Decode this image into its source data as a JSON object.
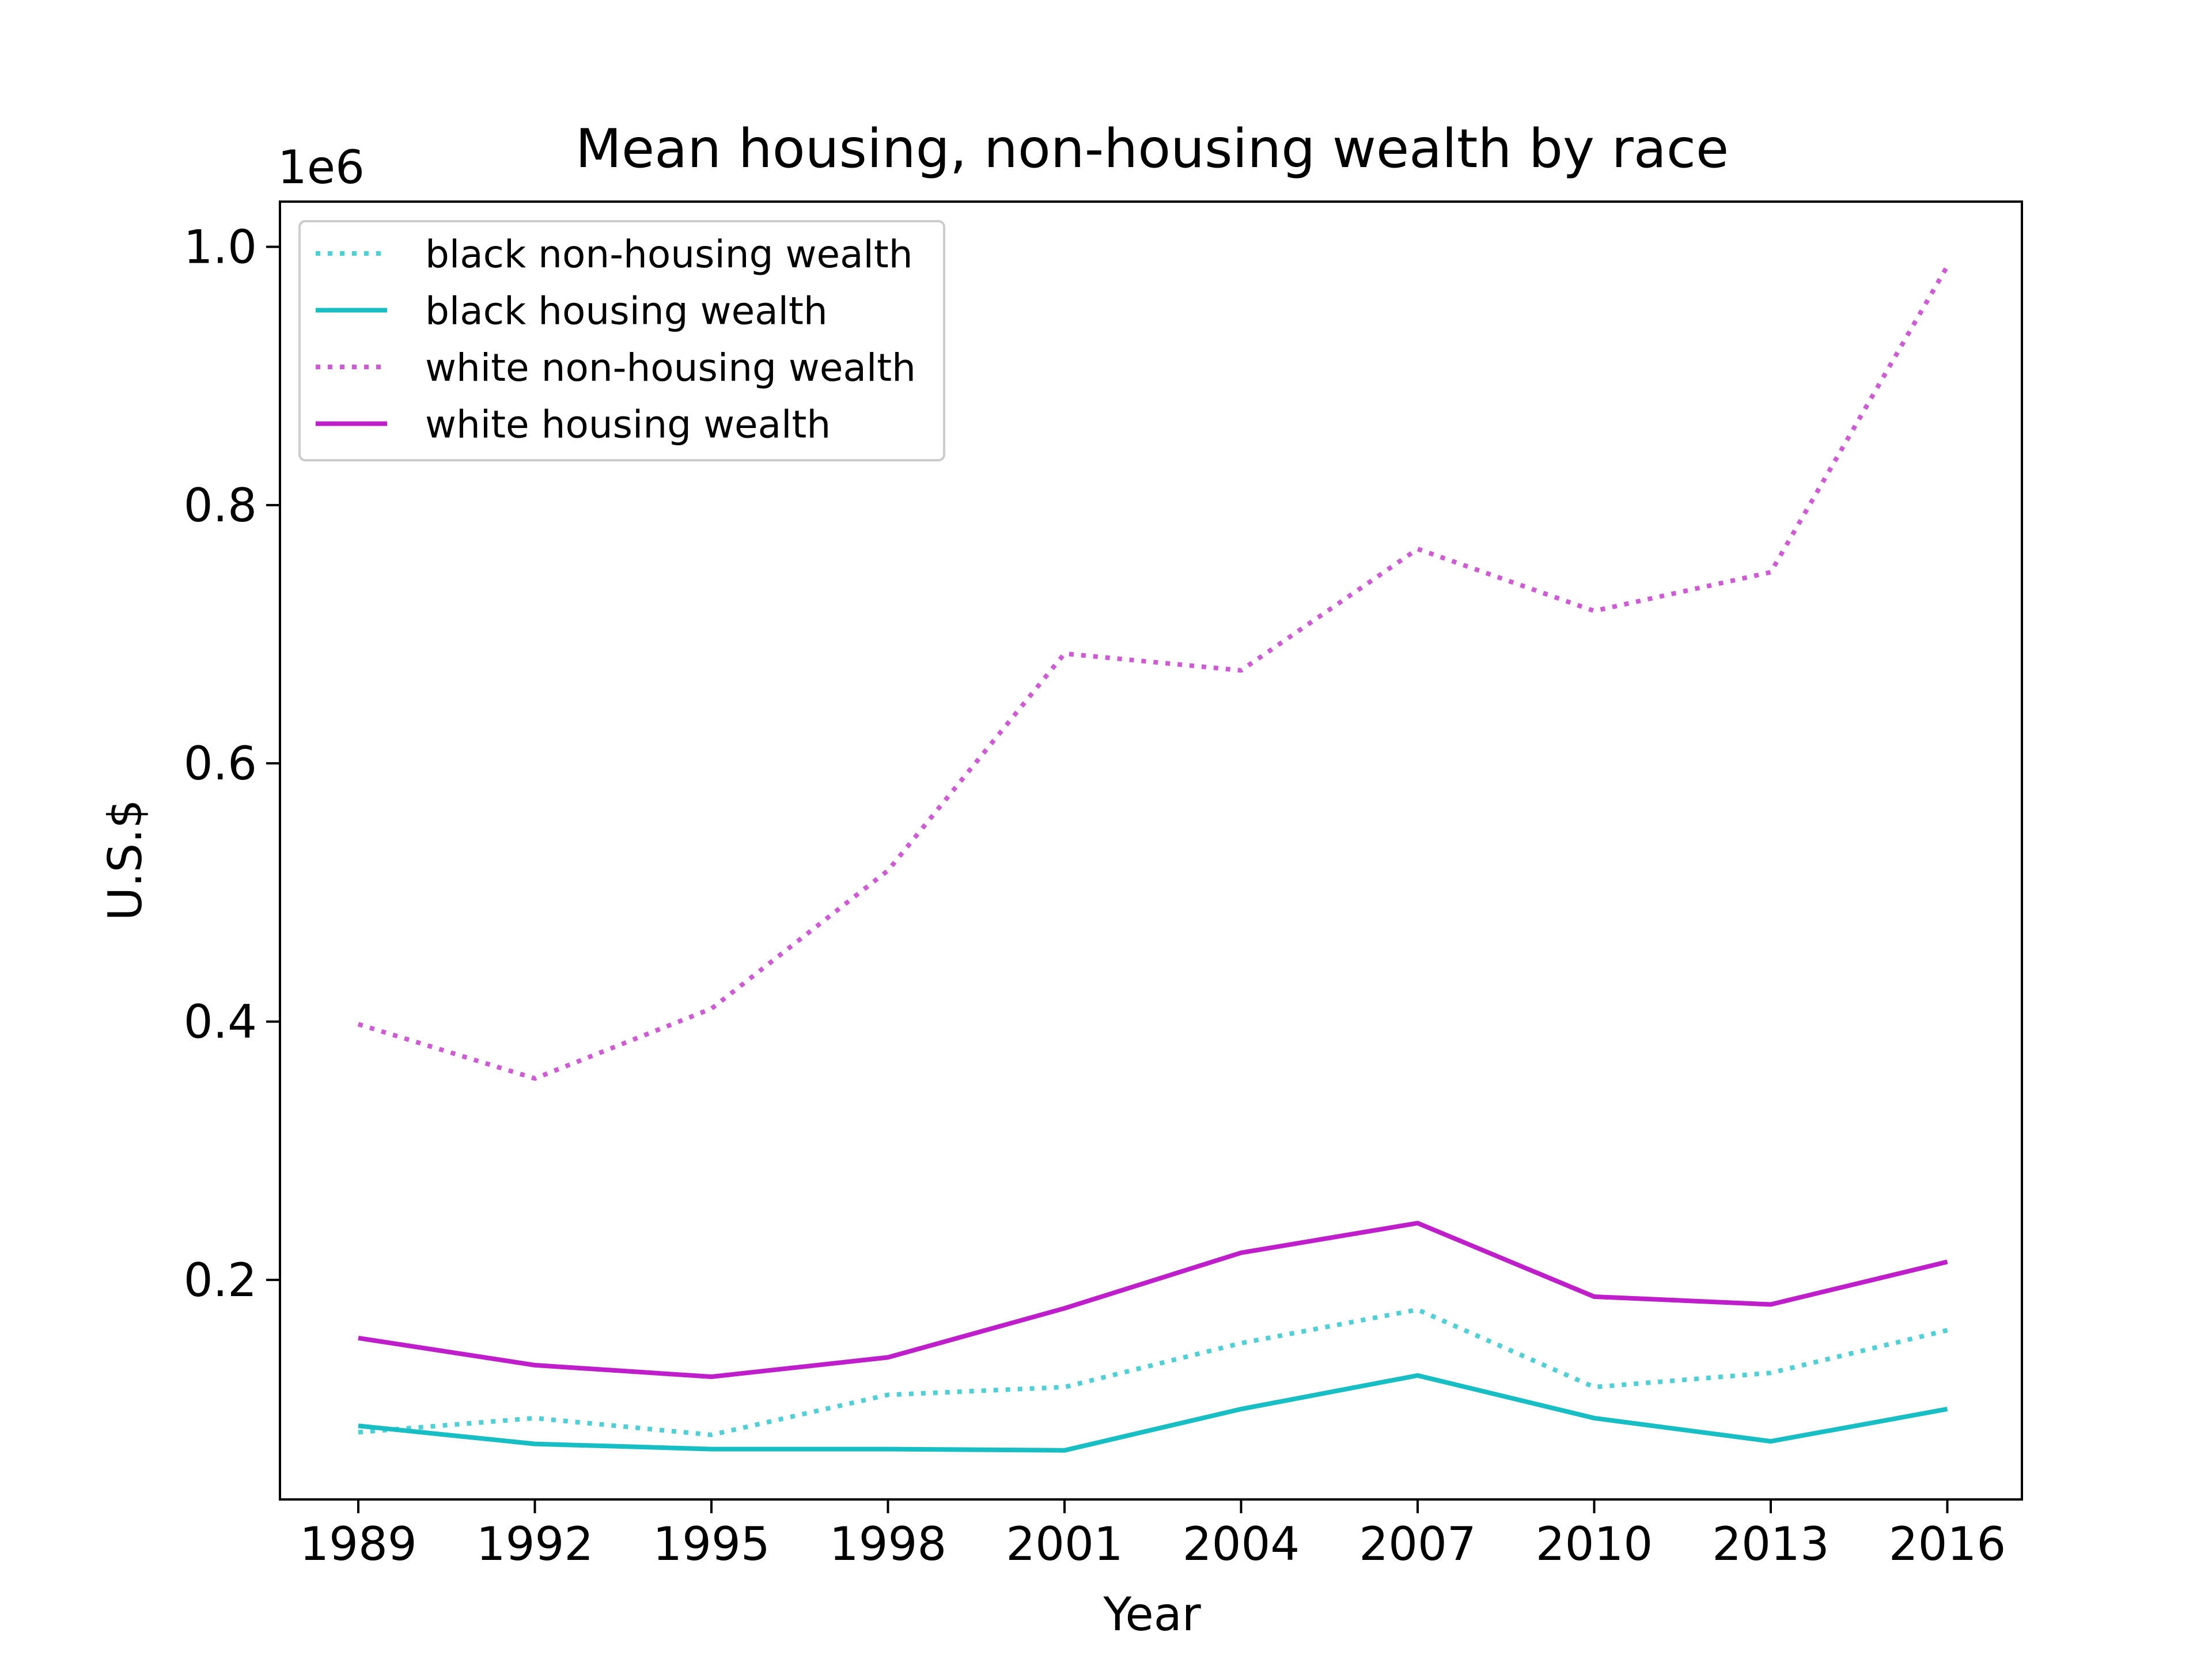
{
  "chart_data": {
    "type": "line",
    "title": "Mean housing, non-housing wealth by race",
    "xlabel": "Year",
    "ylabel": "U.S.$",
    "y_offset_label": "1e6",
    "categories": [
      "1989",
      "1992",
      "1995",
      "1998",
      "2001",
      "2004",
      "2007",
      "2010",
      "2013",
      "2016"
    ],
    "yticks": [
      0.2,
      0.4,
      0.6,
      0.8,
      1.0
    ],
    "ytick_labels": [
      "0.2",
      "0.4",
      "0.6",
      "0.8",
      "1.0"
    ],
    "ylim": [
      0.03,
      1.035
    ],
    "y_scale_multiplier": 1000000,
    "legend_location": "upper left",
    "grid": false,
    "series": [
      {
        "name": "black non-housing wealth",
        "color": "#4dd0d6",
        "style": "dotted",
        "values": [
          0.082,
          0.093,
          0.08,
          0.111,
          0.117,
          0.151,
          0.177,
          0.117,
          0.128,
          0.161
        ]
      },
      {
        "name": "black housing wealth",
        "color": "#17bec4",
        "style": "solid",
        "values": [
          0.087,
          0.073,
          0.069,
          0.069,
          0.068,
          0.1,
          0.126,
          0.093,
          0.075,
          0.1
        ]
      },
      {
        "name": "white non-housing wealth",
        "color": "#d05ad6",
        "style": "dotted",
        "values": [
          0.398,
          0.356,
          0.41,
          0.517,
          0.685,
          0.672,
          0.766,
          0.718,
          0.748,
          0.985
        ]
      },
      {
        "name": "white housing wealth",
        "color": "#bf1fca",
        "style": "solid",
        "values": [
          0.155,
          0.134,
          0.125,
          0.14,
          0.178,
          0.221,
          0.244,
          0.187,
          0.181,
          0.214
        ]
      }
    ]
  }
}
